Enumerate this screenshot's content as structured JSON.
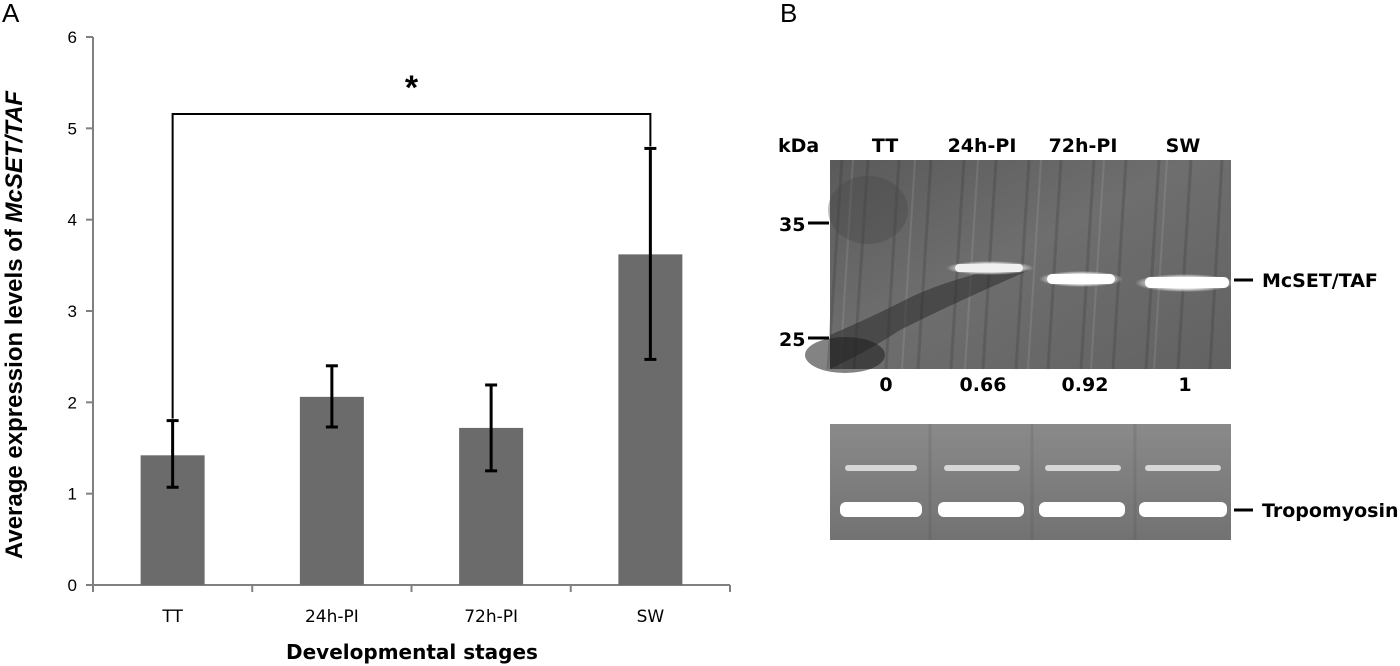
{
  "panel_a": {
    "letter": "A",
    "significance": "*",
    "significance_pair": [
      "TT",
      "SW"
    ]
  },
  "panel_b": {
    "letter": "B",
    "kda_label": "kDa",
    "lanes": [
      "TT",
      "24h-PI",
      "72h-PI",
      "SW"
    ],
    "markers": [
      "35",
      "25"
    ],
    "band_label": "McSET/TAF",
    "relative_values": [
      "0",
      "0.66",
      "0.92",
      "1"
    ],
    "loading_label": "Tropomyosin"
  },
  "chart_data": {
    "type": "bar",
    "categories": [
      "TT",
      "24h-PI",
      "72h-PI",
      "SW"
    ],
    "values": [
      1.42,
      2.06,
      1.72,
      3.62
    ],
    "error_low": [
      1.07,
      1.73,
      1.25,
      2.47
    ],
    "error_high": [
      1.8,
      2.4,
      2.19,
      4.78
    ],
    "xlabel": "Developmental stages",
    "ylabel_prefix": "Average expression levels of ",
    "ylabel_italic": "McSET/TAF",
    "ylim": [
      0,
      6
    ],
    "yticks": [
      0,
      1,
      2,
      3,
      4,
      5,
      6
    ],
    "bar_color": "#6b6b6b",
    "grid": false,
    "legend": "none"
  }
}
